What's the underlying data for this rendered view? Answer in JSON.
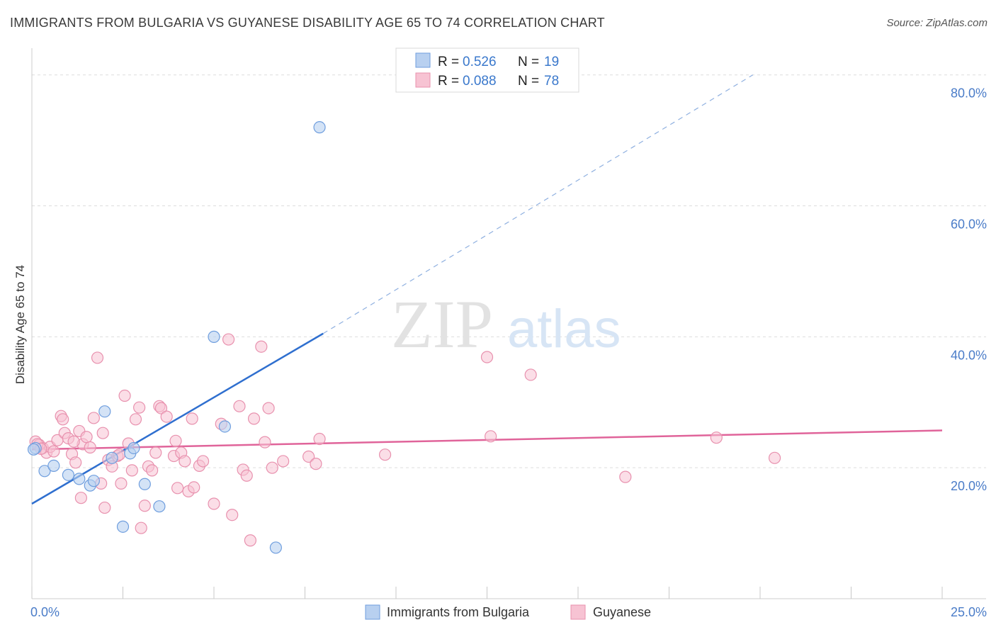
{
  "header": {
    "title": "IMMIGRANTS FROM BULGARIA VS GUYANESE DISABILITY AGE 65 TO 74 CORRELATION CHART",
    "source": "Source: ZipAtlas.com"
  },
  "watermark": {
    "zip": "ZIP",
    "atlas": "atlas"
  },
  "colors": {
    "blue_fill": "#b8d0f0",
    "blue_stroke": "#6f9ede",
    "blue_line": "#2f6fcf",
    "pink_fill": "#f7c3d3",
    "pink_stroke": "#e891ae",
    "pink_line": "#e0649a",
    "tick_label": "#4a7cc8",
    "grid": "#dddddd"
  },
  "legend": {
    "rows": [
      {
        "r_label": "R =",
        "r_value": "0.526",
        "n_label": "N =",
        "n_value": "19"
      },
      {
        "r_label": "R =",
        "r_value": "0.088",
        "n_label": "N =",
        "n_value": "78"
      }
    ]
  },
  "chart_data": {
    "type": "scatter",
    "title": "IMMIGRANTS FROM BULGARIA VS GUYANESE DISABILITY AGE 65 TO 74 CORRELATION CHART",
    "xlabel": "",
    "ylabel": "Disability Age 65 to 74",
    "xlim": [
      0,
      25
    ],
    "ylim": [
      0,
      83
    ],
    "x_tick_labels": [
      "0.0%",
      "25.0%"
    ],
    "y_ticks": [
      20,
      40,
      60,
      80
    ],
    "y_tick_labels": [
      "20.0%",
      "40.0%",
      "60.0%",
      "80.0%"
    ],
    "grid": true,
    "legend_position": "top-center",
    "series": [
      {
        "name": "Immigrants from Bulgaria",
        "color": "blue",
        "R": 0.526,
        "N": 19,
        "trend": {
          "x0": 0,
          "y0": 14.5,
          "x1": 8.0,
          "y1": 40.5,
          "dashed_to_x": 19.8,
          "dashed_to_y": 80
        },
        "points": [
          [
            0.1,
            23.0
          ],
          [
            0.35,
            19.5
          ],
          [
            0.6,
            20.3
          ],
          [
            1.0,
            18.9
          ],
          [
            1.3,
            18.3
          ],
          [
            1.6,
            17.3
          ],
          [
            1.7,
            18.0
          ],
          [
            2.0,
            28.6
          ],
          [
            2.2,
            21.5
          ],
          [
            2.5,
            11.0
          ],
          [
            2.7,
            22.2
          ],
          [
            2.8,
            23.0
          ],
          [
            3.1,
            17.5
          ],
          [
            3.5,
            14.1
          ],
          [
            5.0,
            40.0
          ],
          [
            5.3,
            26.3
          ],
          [
            6.7,
            7.8
          ],
          [
            7.9,
            72.0
          ],
          [
            0.05,
            22.8
          ]
        ]
      },
      {
        "name": "Guyanese",
        "color": "pink",
        "R": 0.088,
        "N": 78,
        "trend": {
          "x0": 0,
          "y0": 22.8,
          "x1": 25,
          "y1": 25.7
        },
        "points": [
          [
            0.1,
            24.0
          ],
          [
            0.2,
            23.5
          ],
          [
            0.3,
            23.0
          ],
          [
            0.4,
            22.3
          ],
          [
            0.5,
            23.2
          ],
          [
            0.6,
            22.5
          ],
          [
            0.7,
            24.2
          ],
          [
            0.8,
            27.9
          ],
          [
            0.85,
            27.4
          ],
          [
            0.9,
            25.3
          ],
          [
            1.0,
            24.5
          ],
          [
            1.1,
            22.1
          ],
          [
            1.2,
            20.8
          ],
          [
            1.3,
            25.6
          ],
          [
            1.35,
            15.4
          ],
          [
            1.4,
            23.6
          ],
          [
            1.5,
            24.7
          ],
          [
            1.6,
            23.1
          ],
          [
            1.7,
            27.6
          ],
          [
            1.8,
            36.8
          ],
          [
            1.9,
            17.6
          ],
          [
            1.95,
            25.3
          ],
          [
            2.0,
            13.9
          ],
          [
            2.1,
            21.2
          ],
          [
            2.2,
            20.2
          ],
          [
            2.35,
            21.8
          ],
          [
            2.45,
            17.6
          ],
          [
            2.55,
            31.0
          ],
          [
            2.65,
            23.7
          ],
          [
            2.75,
            19.6
          ],
          [
            2.85,
            27.4
          ],
          [
            2.95,
            29.2
          ],
          [
            3.0,
            10.8
          ],
          [
            3.1,
            14.2
          ],
          [
            3.2,
            20.2
          ],
          [
            3.3,
            19.6
          ],
          [
            3.4,
            22.3
          ],
          [
            3.5,
            29.4
          ],
          [
            3.55,
            29.1
          ],
          [
            3.7,
            27.8
          ],
          [
            3.9,
            21.8
          ],
          [
            3.95,
            24.1
          ],
          [
            4.0,
            16.9
          ],
          [
            4.1,
            22.3
          ],
          [
            4.2,
            21.0
          ],
          [
            4.3,
            16.4
          ],
          [
            4.4,
            27.5
          ],
          [
            4.45,
            17.0
          ],
          [
            4.6,
            20.3
          ],
          [
            4.7,
            21.0
          ],
          [
            5.0,
            14.5
          ],
          [
            5.2,
            26.7
          ],
          [
            5.4,
            39.6
          ],
          [
            5.5,
            12.8
          ],
          [
            5.7,
            29.4
          ],
          [
            5.8,
            19.7
          ],
          [
            5.9,
            18.8
          ],
          [
            6.0,
            8.9
          ],
          [
            6.1,
            27.5
          ],
          [
            6.3,
            38.5
          ],
          [
            6.4,
            23.9
          ],
          [
            6.5,
            29.1
          ],
          [
            6.6,
            20.0
          ],
          [
            6.9,
            21.0
          ],
          [
            7.6,
            21.7
          ],
          [
            7.8,
            20.6
          ],
          [
            7.9,
            24.4
          ],
          [
            9.7,
            22.0
          ],
          [
            12.5,
            36.9
          ],
          [
            12.6,
            24.8
          ],
          [
            13.7,
            34.2
          ],
          [
            16.3,
            18.6
          ],
          [
            18.8,
            24.6
          ],
          [
            20.4,
            21.5
          ],
          [
            0.15,
            23.6
          ],
          [
            0.25,
            22.9
          ],
          [
            1.15,
            24.0
          ],
          [
            2.4,
            22.0
          ]
        ]
      }
    ]
  },
  "bottom_legend": {
    "items": [
      {
        "label": "Immigrants from Bulgaria"
      },
      {
        "label": "Guyanese"
      }
    ]
  }
}
